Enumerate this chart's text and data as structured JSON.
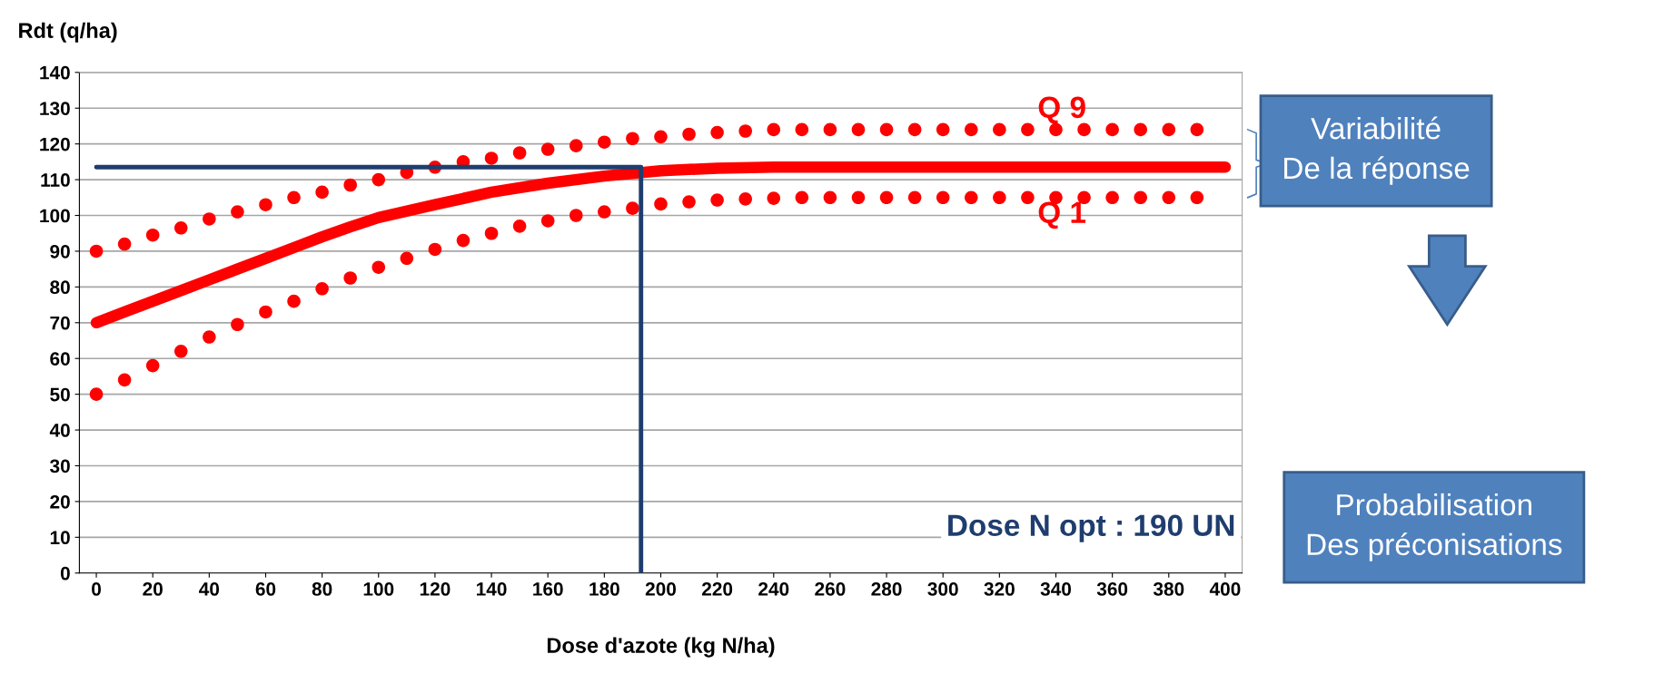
{
  "chart_data": {
    "type": "line",
    "xlabel": "Dose d'azote (kg N/ha)",
    "ylabel": "Rdt (q/ha)",
    "xlim": [
      -6,
      406
    ],
    "xticks": [
      0,
      20,
      40,
      60,
      80,
      100,
      120,
      140,
      160,
      180,
      200,
      220,
      240,
      260,
      280,
      300,
      320,
      340,
      360,
      380,
      400
    ],
    "ylim": [
      0,
      140
    ],
    "yticks": [
      0,
      10,
      20,
      30,
      40,
      50,
      60,
      70,
      80,
      90,
      100,
      110,
      120,
      130,
      140
    ],
    "grid": "y",
    "series": [
      {
        "color": "#ff0000",
        "x": [
          0,
          10,
          20,
          30,
          40,
          50,
          60,
          70,
          80,
          90,
          100,
          120,
          140,
          160,
          180,
          200,
          220,
          240,
          260,
          300,
          400
        ],
        "values": [
          70,
          73,
          76,
          79,
          82,
          85,
          88,
          91,
          94,
          96.8,
          99.4,
          103,
          106.5,
          109,
          111,
          112.5,
          113.2,
          113.5,
          113.5,
          113.5,
          113.5
        ]
      },
      {
        "type": "scatter",
        "marker": "circle",
        "color": "#ff0000",
        "x": [
          0,
          10,
          20,
          30,
          40,
          50,
          60,
          70,
          80,
          90,
          100,
          110,
          120,
          130,
          140,
          150,
          160,
          170,
          180,
          190,
          200,
          210,
          220,
          230,
          240,
          250,
          260,
          270,
          280,
          290,
          300,
          310,
          320,
          330,
          340,
          350,
          360,
          370,
          380,
          390
        ],
        "values": [
          90,
          92,
          94.5,
          96.5,
          99,
          101,
          103,
          105,
          106.5,
          108.5,
          110,
          112,
          113.5,
          115,
          116,
          117.5,
          118.5,
          119.5,
          120.5,
          121.5,
          122,
          122.7,
          123.2,
          123.6,
          124,
          124,
          124,
          124,
          124,
          124,
          124,
          124,
          124,
          124,
          124,
          124,
          124,
          124,
          124,
          124
        ]
      },
      {
        "type": "scatter",
        "marker": "circle",
        "color": "#ff0000",
        "x": [
          0,
          10,
          20,
          30,
          40,
          50,
          60,
          70,
          80,
          90,
          100,
          110,
          120,
          130,
          140,
          150,
          160,
          170,
          180,
          190,
          200,
          210,
          220,
          230,
          240,
          250,
          260,
          270,
          280,
          290,
          300,
          310,
          320,
          330,
          340,
          350,
          360,
          370,
          380,
          390
        ],
        "values": [
          50,
          54,
          58,
          62,
          66,
          69.5,
          73,
          76,
          79.5,
          82.5,
          85.5,
          88,
          90.5,
          93,
          95,
          97,
          98.5,
          100,
          101,
          102,
          103.2,
          103.8,
          104.3,
          104.6,
          104.8,
          105,
          105,
          105,
          105,
          105,
          105,
          105,
          105,
          105,
          105,
          105,
          105,
          105,
          105,
          105
        ]
      },
      {
        "color": "#1f3d6e",
        "x": [
          0,
          193,
          193
        ],
        "values": [
          113.5,
          113.5,
          0
        ]
      }
    ],
    "annotations": [
      "Q 9",
      "Q 1",
      "Dose N opt : 190 UN",
      "Variabilité\nDe la réponse",
      "Probabilisation\nDes préconisations"
    ]
  }
}
